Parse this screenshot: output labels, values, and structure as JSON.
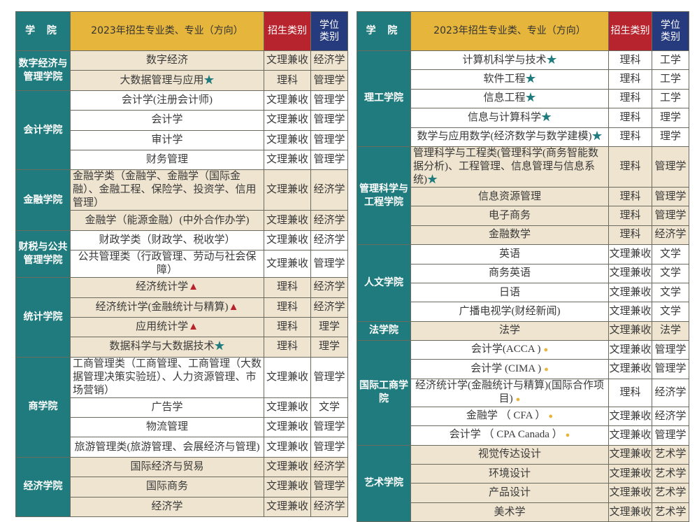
{
  "header": {
    "school": "学 院",
    "major": "2023年招生专业类、专业（方向）",
    "type": "招生类别",
    "degree": "学位类别"
  },
  "marks": {
    "star": "★",
    "triangle": "▲",
    "dot": "●"
  },
  "colors": {
    "teal": "#1f7b7d",
    "gold": "#e5b53c",
    "red": "#b8242d",
    "navy": "#263a7e",
    "beige": "#efe4cf"
  },
  "left": [
    {
      "school": "数字经济与管理学院",
      "bg": "beige",
      "rows": [
        {
          "major": "数字经济",
          "type": "文理兼收",
          "degree": "经济学"
        },
        {
          "major": "大数据管理与应用",
          "mark": "star",
          "type": "理科",
          "degree": "管理学"
        }
      ]
    },
    {
      "school": "会计学院",
      "bg": "white",
      "rows": [
        {
          "major": "会计学(注册会计师)",
          "type": "文理兼收",
          "degree": "管理学"
        },
        {
          "major": "会计学",
          "type": "文理兼收",
          "degree": "管理学"
        },
        {
          "major": "审计学",
          "type": "文理兼收",
          "degree": "管理学"
        },
        {
          "major": "财务管理",
          "type": "文理兼收",
          "degree": "管理学"
        }
      ]
    },
    {
      "school": "金融学院",
      "bg": "beige",
      "rows": [
        {
          "major": "金融学类（金融学、金融学（国际金融）、金融工程、保险学、投资学、信用管理）",
          "type": "文理兼收",
          "degree": "经济学",
          "tall": true
        },
        {
          "major": "金融学（能源金融）(中外合作办学)",
          "type": "文理兼收",
          "degree": "经济学"
        }
      ]
    },
    {
      "school": "财税与公共管理学院",
      "bg": "white",
      "rows": [
        {
          "major": "财政学类（财政学、税收学）",
          "type": "文理兼收",
          "degree": "经济学"
        },
        {
          "major": "公共管理类（行政管理、劳动与社会保障）",
          "type": "文理兼收",
          "degree": "管理学"
        }
      ]
    },
    {
      "school": "统计学院",
      "bg": "beige",
      "rows": [
        {
          "major": "经济统计学",
          "mark": "triangle",
          "type": "理科",
          "degree": "经济学"
        },
        {
          "major": "经济统计学(金融统计与精算)",
          "mark": "triangle",
          "type": "理科",
          "degree": "经济学"
        },
        {
          "major": "应用统计学",
          "mark": "triangle",
          "type": "理科",
          "degree": "理学"
        },
        {
          "major": "数据科学与大数据技术",
          "mark": "star",
          "type": "理科",
          "degree": "理学"
        }
      ]
    },
    {
      "school": "商学院",
      "bg": "white",
      "rows": [
        {
          "major": "工商管理类（工商管理、工商管理（大数据管理决策实验班）、人力资源管理、市场营销）",
          "type": "文理兼收",
          "degree": "管理学",
          "tall": true
        },
        {
          "major": "广告学",
          "type": "文理兼收",
          "degree": "文学"
        },
        {
          "major": "物流管理",
          "type": "文理兼收",
          "degree": "管理学"
        },
        {
          "major": "旅游管理类(旅游管理、会展经济与管理)",
          "type": "文理兼收",
          "degree": "管理学"
        }
      ]
    },
    {
      "school": "经济学院",
      "bg": "beige",
      "rows": [
        {
          "major": "国际经济与贸易",
          "type": "文理兼收",
          "degree": "经济学"
        },
        {
          "major": "国际商务",
          "type": "文理兼收",
          "degree": "管理学"
        },
        {
          "major": "经济学",
          "type": "文理兼收",
          "degree": "经济学"
        }
      ]
    }
  ],
  "right": [
    {
      "school": "理工学院",
      "bg": "white",
      "rows": [
        {
          "major": "计算机科学与技术",
          "mark": "star",
          "type": "理科",
          "degree": "工学"
        },
        {
          "major": "软件工程",
          "mark": "star",
          "type": "理科",
          "degree": "工学"
        },
        {
          "major": "信息工程",
          "mark": "star",
          "type": "理科",
          "degree": "工学"
        },
        {
          "major": "信息与计算科学",
          "mark": "star",
          "type": "理科",
          "degree": "理学"
        },
        {
          "major": "数学与应用数学(经济数学与数学建模)",
          "mark": "star",
          "type": "理科",
          "degree": "理学"
        }
      ]
    },
    {
      "school": "管理科学与工程学院",
      "bg": "beige",
      "rows": [
        {
          "major": "管理科学与工程类(管理科学(商务智能数据分析)、工程管理、信息管理与信息系统)",
          "mark": "star",
          "type": "理科",
          "degree": "管理学",
          "tall": true
        },
        {
          "major": "信息资源管理",
          "type": "理科",
          "degree": "管理学"
        },
        {
          "major": "电子商务",
          "type": "理科",
          "degree": "管理学"
        },
        {
          "major": "金融数学",
          "type": "理科",
          "degree": "经济学"
        }
      ]
    },
    {
      "school": "人文学院",
      "bg": "white",
      "rows": [
        {
          "major": "英语",
          "type": "文理兼收",
          "degree": "文学"
        },
        {
          "major": "商务英语",
          "type": "文理兼收",
          "degree": "文学"
        },
        {
          "major": "日语",
          "type": "文理兼收",
          "degree": "文学"
        },
        {
          "major": "广播电视学(财经新闻)",
          "type": "文理兼收",
          "degree": "文学"
        }
      ]
    },
    {
      "school": "法学院",
      "bg": "beige",
      "rows": [
        {
          "major": "法学",
          "type": "文理兼收",
          "degree": "法学"
        }
      ]
    },
    {
      "school": "国际工商学院",
      "bg": "white",
      "rows": [
        {
          "major": "会计学(ACCA )",
          "mark": "dot",
          "type": "文理兼收",
          "degree": "管理学"
        },
        {
          "major": "会计学 (CIMA )",
          "mark": "dot",
          "type": "文理兼收",
          "degree": "管理学"
        },
        {
          "major": "经济统计学(金融统计与精算)(国际合作项目)",
          "mark": "dot",
          "type": "理科",
          "degree": "经济学"
        },
        {
          "major": "金融学 （ CFA ）",
          "mark": "dot",
          "type": "文理兼收",
          "degree": "经济学"
        },
        {
          "major": "会计学 （ CPA Canada ）",
          "mark": "dot",
          "type": "文理兼收",
          "degree": "管理学"
        }
      ]
    },
    {
      "school": "艺术学院",
      "bg": "beige",
      "rows": [
        {
          "major": "视觉传达设计",
          "type": "文理兼收",
          "degree": "艺术学"
        },
        {
          "major": "环境设计",
          "type": "文理兼收",
          "degree": "艺术学"
        },
        {
          "major": "产品设计",
          "type": "文理兼收",
          "degree": "艺术学"
        },
        {
          "major": "美术学",
          "type": "文理兼收",
          "degree": "艺术学"
        }
      ]
    }
  ]
}
